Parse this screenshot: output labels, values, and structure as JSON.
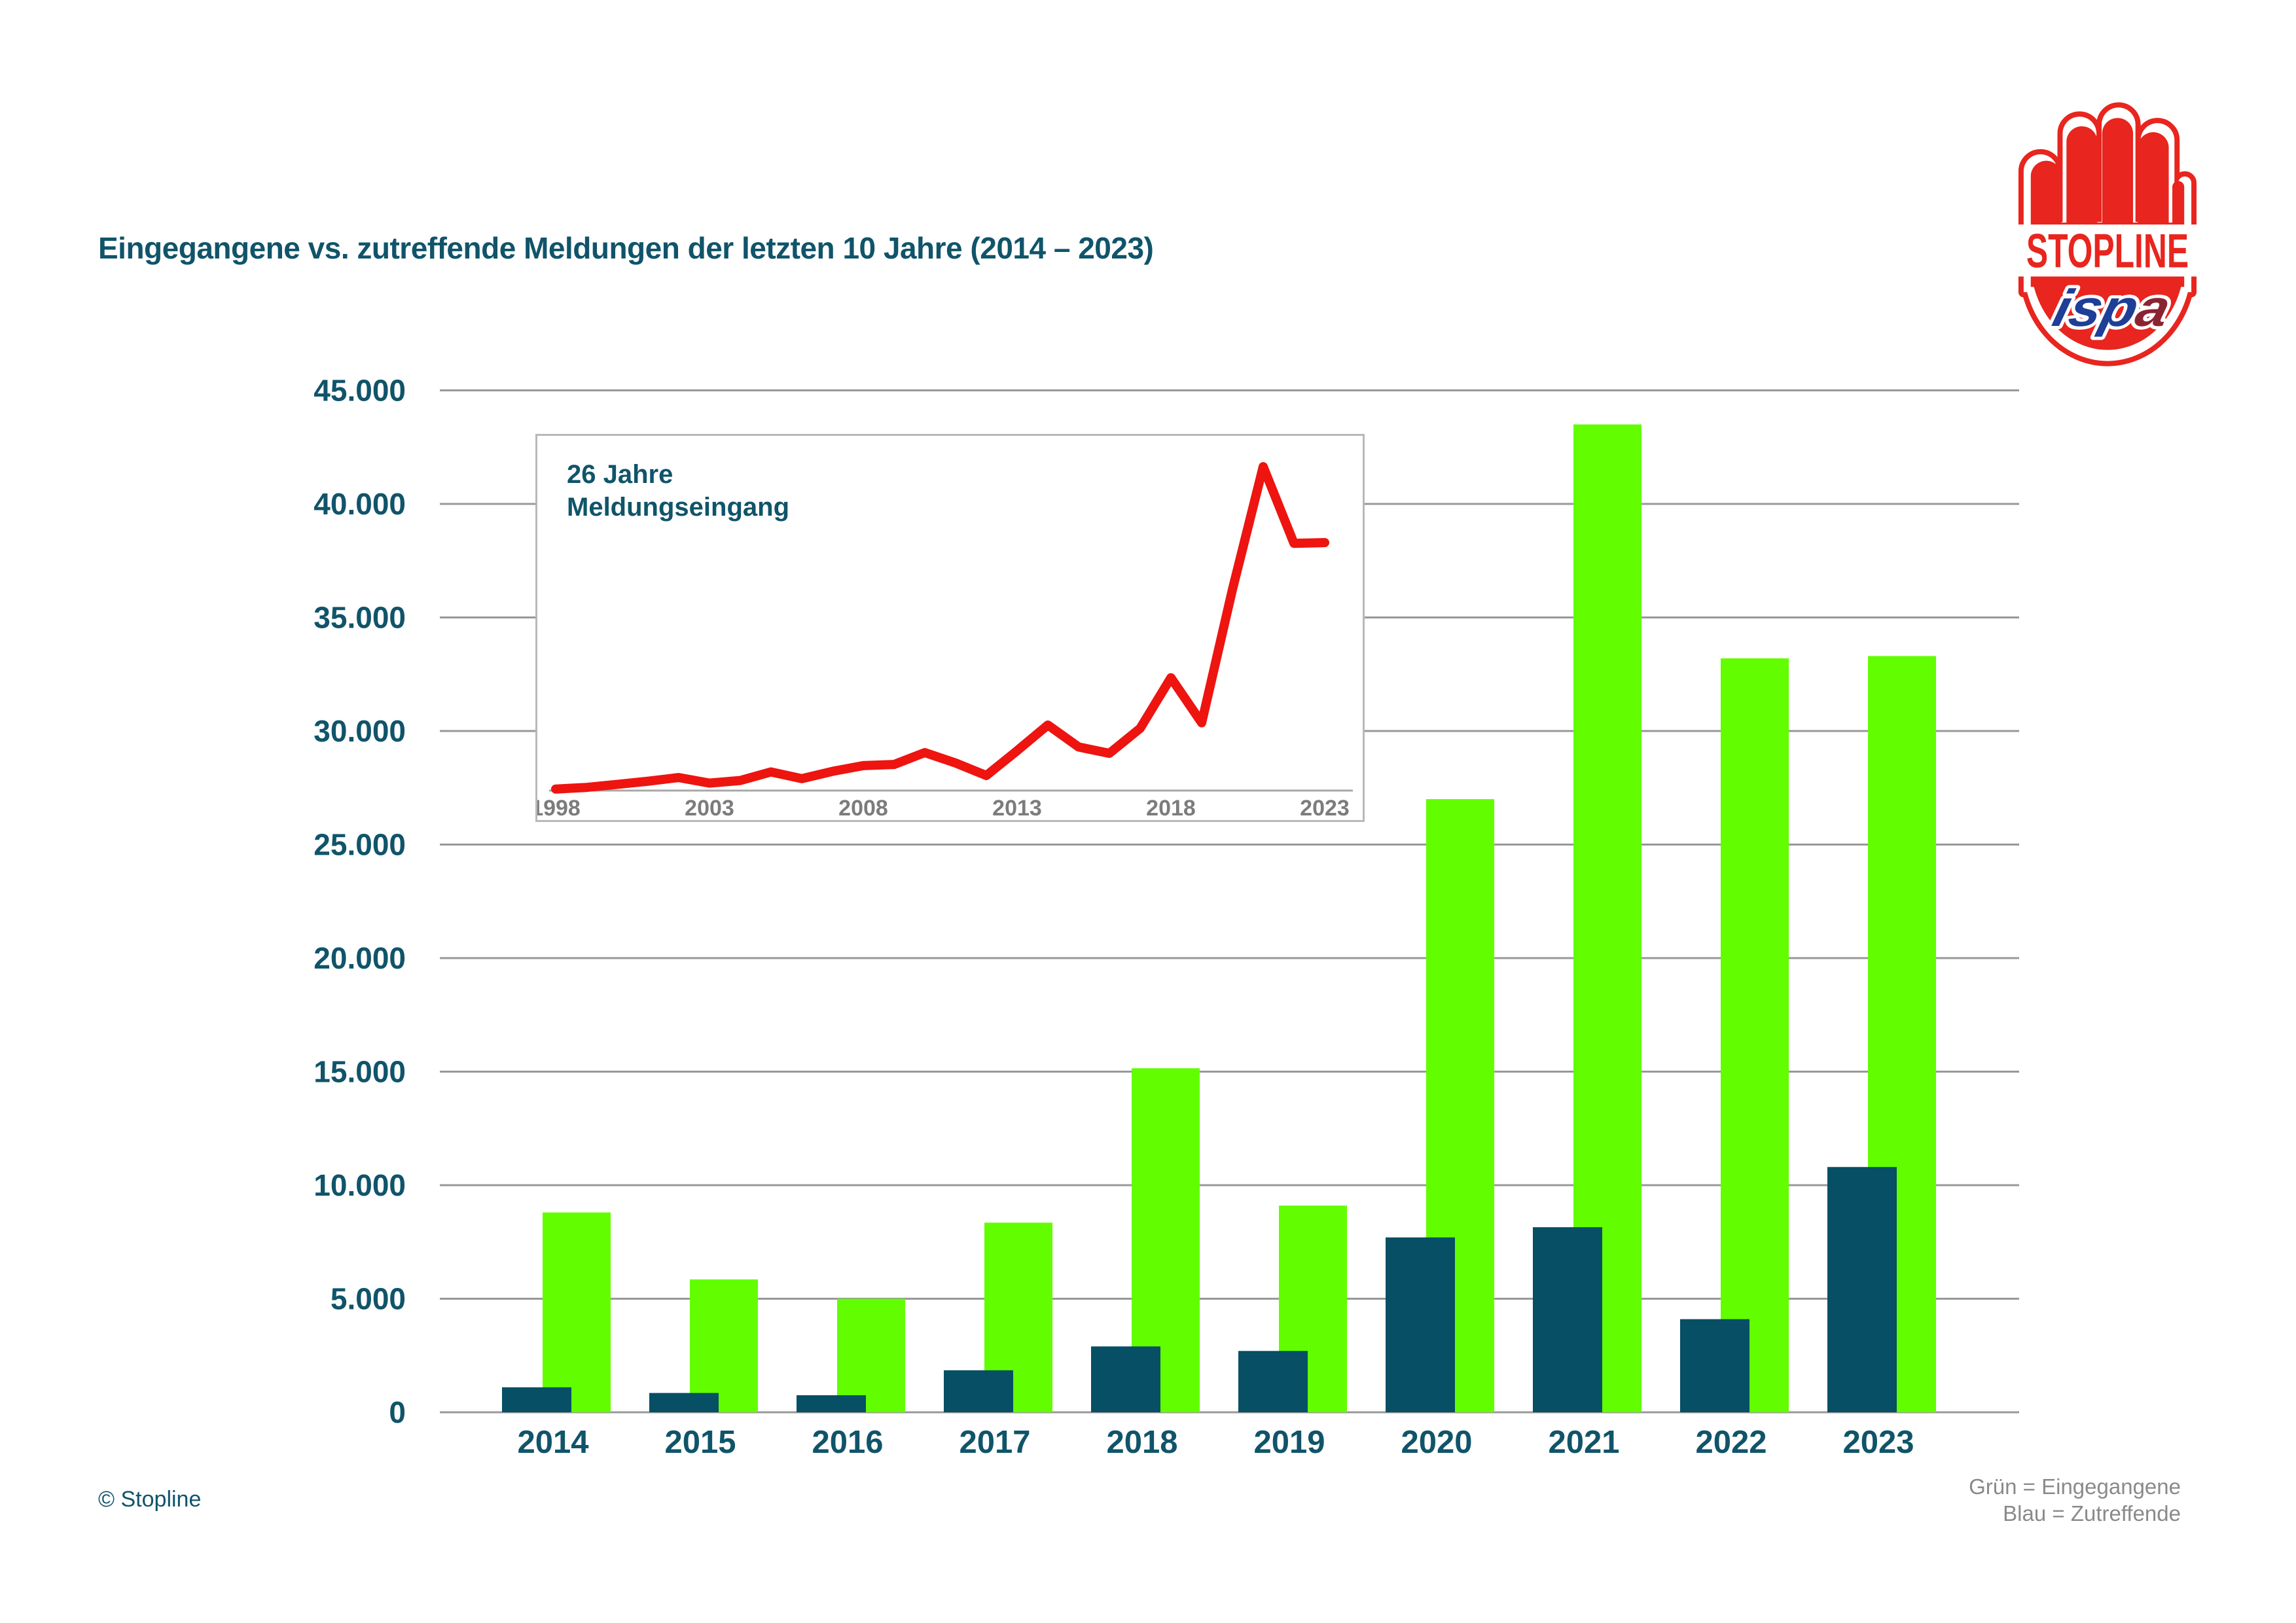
{
  "title": "Eingegangene vs. zutreffende Meldungen der letzten 10 Jahre (2014 – 2023)",
  "footer": {
    "copyright": "© Stopline",
    "legend_line1": "Grün = Eingegangene",
    "legend_line2": "Blau = Zutreffende"
  },
  "logo": {
    "stopline": "STOPLINE",
    "ispa_blue_part": "isp",
    "ispa_red_part": "a"
  },
  "colors": {
    "accent_teal": "#10546A",
    "bar_green": "#62FE00",
    "bar_blue": "#064F64",
    "line_red": "#EE1410",
    "logo_red": "#E8251E",
    "grid_gray": "#989898",
    "inset_label_gray": "#7C7C7C",
    "inset_axis_gray": "#A8A8A8",
    "legend_gray": "#8A8A8A",
    "ispa_blue": "#1E3E97",
    "ispa_dark_red": "#8C2332"
  },
  "chart_data": [
    {
      "type": "bar",
      "title": "Eingegangene vs. zutreffende Meldungen der letzten 10 Jahre (2014 – 2023)",
      "categories": [
        "2014",
        "2015",
        "2016",
        "2017",
        "2018",
        "2019",
        "2020",
        "2021",
        "2022",
        "2023"
      ],
      "series": [
        {
          "name": "Eingegangene",
          "color": "#62FE00",
          "values": [
            8800,
            5850,
            5000,
            8350,
            15150,
            9100,
            27000,
            43500,
            33200,
            33300
          ]
        },
        {
          "name": "Zutreffende",
          "color": "#064F64",
          "values": [
            1100,
            850,
            750,
            1850,
            2900,
            2700,
            7700,
            8150,
            4100,
            10800
          ]
        }
      ],
      "ylim": [
        0,
        45000
      ],
      "ytick_step": 5000,
      "ytick_labels": [
        "0",
        "5.000",
        "10.000",
        "15.000",
        "20.000",
        "25.000",
        "30.000",
        "35.000",
        "40.000",
        "45.000"
      ],
      "grid": "horizontal",
      "legend_position": "bottom-right",
      "legend_note": "Grün = Eingegangene, Blau = Zutreffende"
    },
    {
      "type": "line",
      "title": "26 Jahre Meldungseingang",
      "title_line1": "26 Jahre",
      "title_line2": "Meldungseingang",
      "x": [
        1998,
        1999,
        2000,
        2001,
        2002,
        2003,
        2004,
        2005,
        2006,
        2007,
        2008,
        2009,
        2010,
        2011,
        2012,
        2013,
        2014,
        2015,
        2016,
        2017,
        2018,
        2019,
        2020,
        2021,
        2022,
        2023
      ],
      "values": [
        200,
        420,
        830,
        1250,
        1750,
        1000,
        1350,
        2500,
        1600,
        2580,
        3350,
        3500,
        5100,
        3700,
        2020,
        5350,
        8800,
        5850,
        5000,
        8350,
        15150,
        9100,
        27000,
        43500,
        33200,
        33300
      ],
      "xtick_labels": [
        "1998",
        "2003",
        "2008",
        "2013",
        "2018",
        "2023"
      ],
      "color": "#EE1410",
      "ylim": [
        0,
        45500
      ],
      "grid": "off",
      "legend_position": "none"
    }
  ]
}
